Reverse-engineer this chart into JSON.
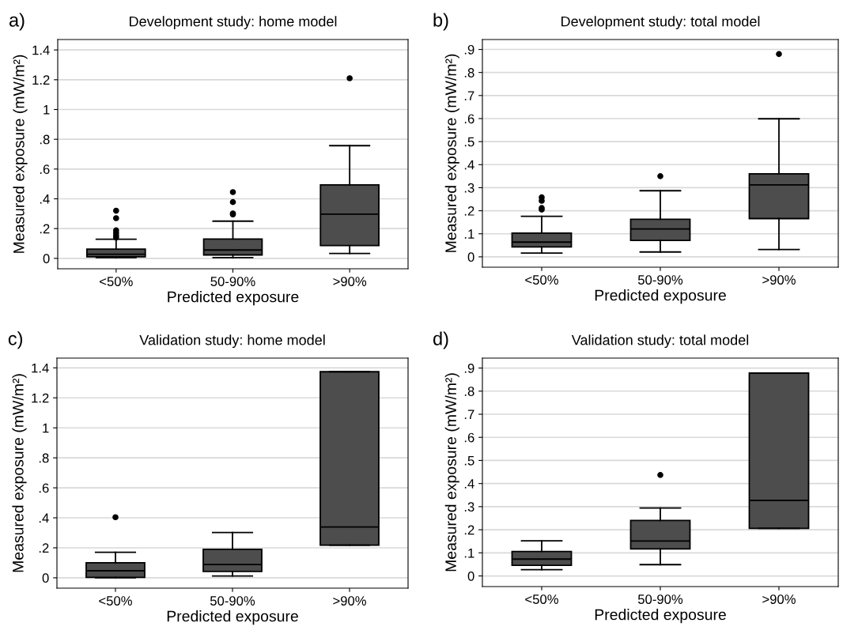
{
  "chart_data": [
    {
      "type": "box",
      "title": "Development study: home model",
      "annotations": [
        "a)"
      ],
      "xlabel": "Predicted exposure",
      "ylabel": "Measured exposure (mW/m²)",
      "categories": [
        "<50%",
        "50-90%",
        ">90%"
      ],
      "color": "#4d4d4d",
      "grid": "y",
      "ylim": [
        -0.07,
        1.47
      ],
      "yticks": [
        0,
        {
          "value": 0.2,
          "label": ".2"
        },
        {
          "value": 0.4,
          "label": ".4"
        },
        {
          "value": 0.6,
          "label": ".6"
        },
        {
          "value": 0.8,
          "label": ".8"
        },
        1,
        1.2,
        1.4
      ],
      "boxes": [
        {
          "low": 0.005,
          "q1": 0.01,
          "median": 0.028,
          "q3": 0.062,
          "high": 0.128,
          "outliers": [
            0.139,
            0.153,
            0.17,
            0.188,
            0.27,
            0.32
          ]
        },
        {
          "low": 0.005,
          "q1": 0.023,
          "median": 0.056,
          "q3": 0.13,
          "high": 0.25,
          "outliers": [
            0.295,
            0.302,
            0.378,
            0.445
          ]
        },
        {
          "low": 0.033,
          "q1": 0.086,
          "median": 0.297,
          "q3": 0.494,
          "high": 0.757,
          "outliers": [
            1.21
          ]
        }
      ]
    },
    {
      "type": "box",
      "title": "Development study: total model",
      "annotations": [
        "b)"
      ],
      "xlabel": "Predicted exposure",
      "ylabel": "Measured exposure (mW/m²)",
      "categories": [
        "<50%",
        "50-90%",
        ">90%"
      ],
      "color": "#4d4d4d",
      "grid": "y",
      "ylim": [
        -0.045,
        0.943
      ],
      "yticks": [
        0,
        {
          "value": 0.1,
          "label": ".1"
        },
        {
          "value": 0.2,
          "label": ".2"
        },
        {
          "value": 0.3,
          "label": ".3"
        },
        {
          "value": 0.4,
          "label": ".4"
        },
        {
          "value": 0.5,
          "label": ".5"
        },
        {
          "value": 0.6,
          "label": ".6"
        },
        {
          "value": 0.7,
          "label": ".7"
        },
        {
          "value": 0.8,
          "label": ".8"
        },
        {
          "value": 0.9,
          "label": ".9"
        }
      ],
      "boxes": [
        {
          "low": 0.016,
          "q1": 0.043,
          "median": 0.064,
          "q3": 0.103,
          "high": 0.176,
          "outliers": [
            0.205,
            0.212,
            0.243,
            0.258
          ]
        },
        {
          "low": 0.021,
          "q1": 0.071,
          "median": 0.121,
          "q3": 0.163,
          "high": 0.287,
          "outliers": [
            0.35
          ]
        },
        {
          "low": 0.032,
          "q1": 0.166,
          "median": 0.312,
          "q3": 0.36,
          "high": 0.599,
          "outliers": [
            0.88
          ]
        }
      ]
    },
    {
      "type": "box",
      "title": "Validation study: home model",
      "annotations": [
        "c)"
      ],
      "xlabel": "Predicted exposure",
      "ylabel": "Measured exposure (mW/m²)",
      "categories": [
        "<50%",
        "50-90%",
        ">90%"
      ],
      "color": "#4d4d4d",
      "grid": "y",
      "ylim": [
        -0.069,
        1.465
      ],
      "yticks": [
        0,
        {
          "value": 0.2,
          "label": ".2"
        },
        {
          "value": 0.4,
          "label": ".4"
        },
        {
          "value": 0.6,
          "label": ".6"
        },
        {
          "value": 0.8,
          "label": ".8"
        },
        1,
        1.2,
        1.4
      ],
      "boxes": [
        {
          "low": 0.0,
          "q1": 0.003,
          "median": 0.047,
          "q3": 0.1,
          "high": 0.17,
          "outliers": [
            0.404
          ]
        },
        {
          "low": 0.012,
          "q1": 0.042,
          "median": 0.088,
          "q3": 0.19,
          "high": 0.302
        },
        {
          "low": 0.218,
          "q1": 0.218,
          "median": 0.339,
          "q3": 1.374,
          "high": 1.374
        }
      ]
    },
    {
      "type": "box",
      "title": "Validation study: total model",
      "annotations": [
        "d)"
      ],
      "xlabel": "Predicted exposure",
      "ylabel": "Measured exposure (mW/m²)",
      "categories": [
        "<50%",
        "50-90%",
        ">90%"
      ],
      "color": "#4d4d4d",
      "grid": "y",
      "ylim": [
        -0.046,
        0.943
      ],
      "yticks": [
        0,
        {
          "value": 0.1,
          "label": ".1"
        },
        {
          "value": 0.2,
          "label": ".2"
        },
        {
          "value": 0.3,
          "label": ".3"
        },
        {
          "value": 0.4,
          "label": ".4"
        },
        {
          "value": 0.5,
          "label": ".5"
        },
        {
          "value": 0.6,
          "label": ".6"
        },
        {
          "value": 0.7,
          "label": ".7"
        },
        {
          "value": 0.8,
          "label": ".8"
        },
        {
          "value": 0.9,
          "label": ".9"
        }
      ],
      "boxes": [
        {
          "low": 0.027,
          "q1": 0.046,
          "median": 0.073,
          "q3": 0.106,
          "high": 0.152
        },
        {
          "low": 0.049,
          "q1": 0.117,
          "median": 0.151,
          "q3": 0.24,
          "high": 0.294,
          "outliers": [
            0.437
          ]
        },
        {
          "low": 0.206,
          "q1": 0.206,
          "median": 0.327,
          "q3": 0.878,
          "high": 0.878
        }
      ]
    }
  ]
}
